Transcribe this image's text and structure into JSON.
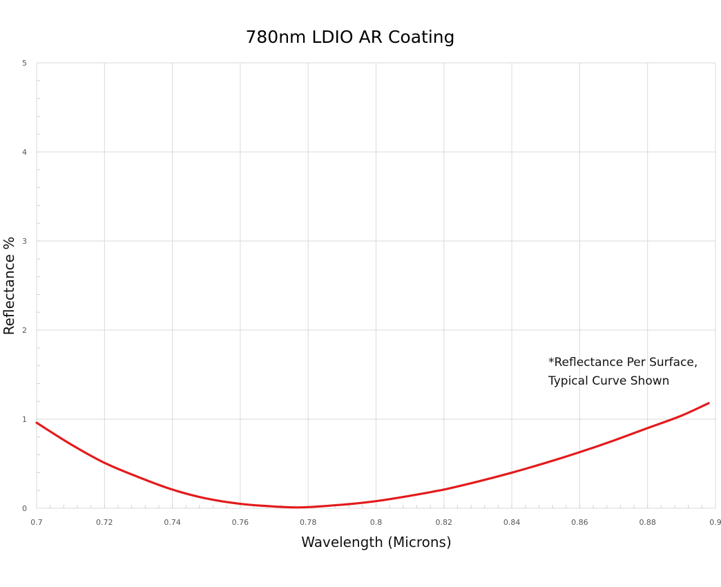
{
  "chart_data": {
    "type": "line",
    "title": "780nm LDIO AR Coating",
    "xlabel": "Wavelength (Microns)",
    "ylabel": "Reflectance %",
    "xlim": [
      0.7,
      0.9
    ],
    "ylim": [
      0,
      5
    ],
    "x_ticks": [
      "0.7",
      "0.72",
      "0.74",
      "0.76",
      "0.78",
      "0.8",
      "0.82",
      "0.84",
      "0.86",
      "0.88",
      "0.9"
    ],
    "y_ticks": [
      "0",
      "1",
      "2",
      "3",
      "4",
      "5"
    ],
    "grid": true,
    "annotation": [
      "*Reflectance Per Surface,",
      "Typical Curve Shown"
    ],
    "series": [
      {
        "color": "#e31a1c",
        "x": [
          0.7,
          0.71,
          0.72,
          0.73,
          0.74,
          0.75,
          0.76,
          0.77,
          0.778,
          0.79,
          0.8,
          0.81,
          0.82,
          0.83,
          0.84,
          0.85,
          0.86,
          0.87,
          0.88,
          0.89,
          0.898
        ],
        "y": [
          0.96,
          0.72,
          0.51,
          0.35,
          0.21,
          0.11,
          0.05,
          0.02,
          0.01,
          0.04,
          0.08,
          0.14,
          0.21,
          0.3,
          0.4,
          0.51,
          0.63,
          0.76,
          0.9,
          1.04,
          1.18
        ]
      }
    ]
  }
}
